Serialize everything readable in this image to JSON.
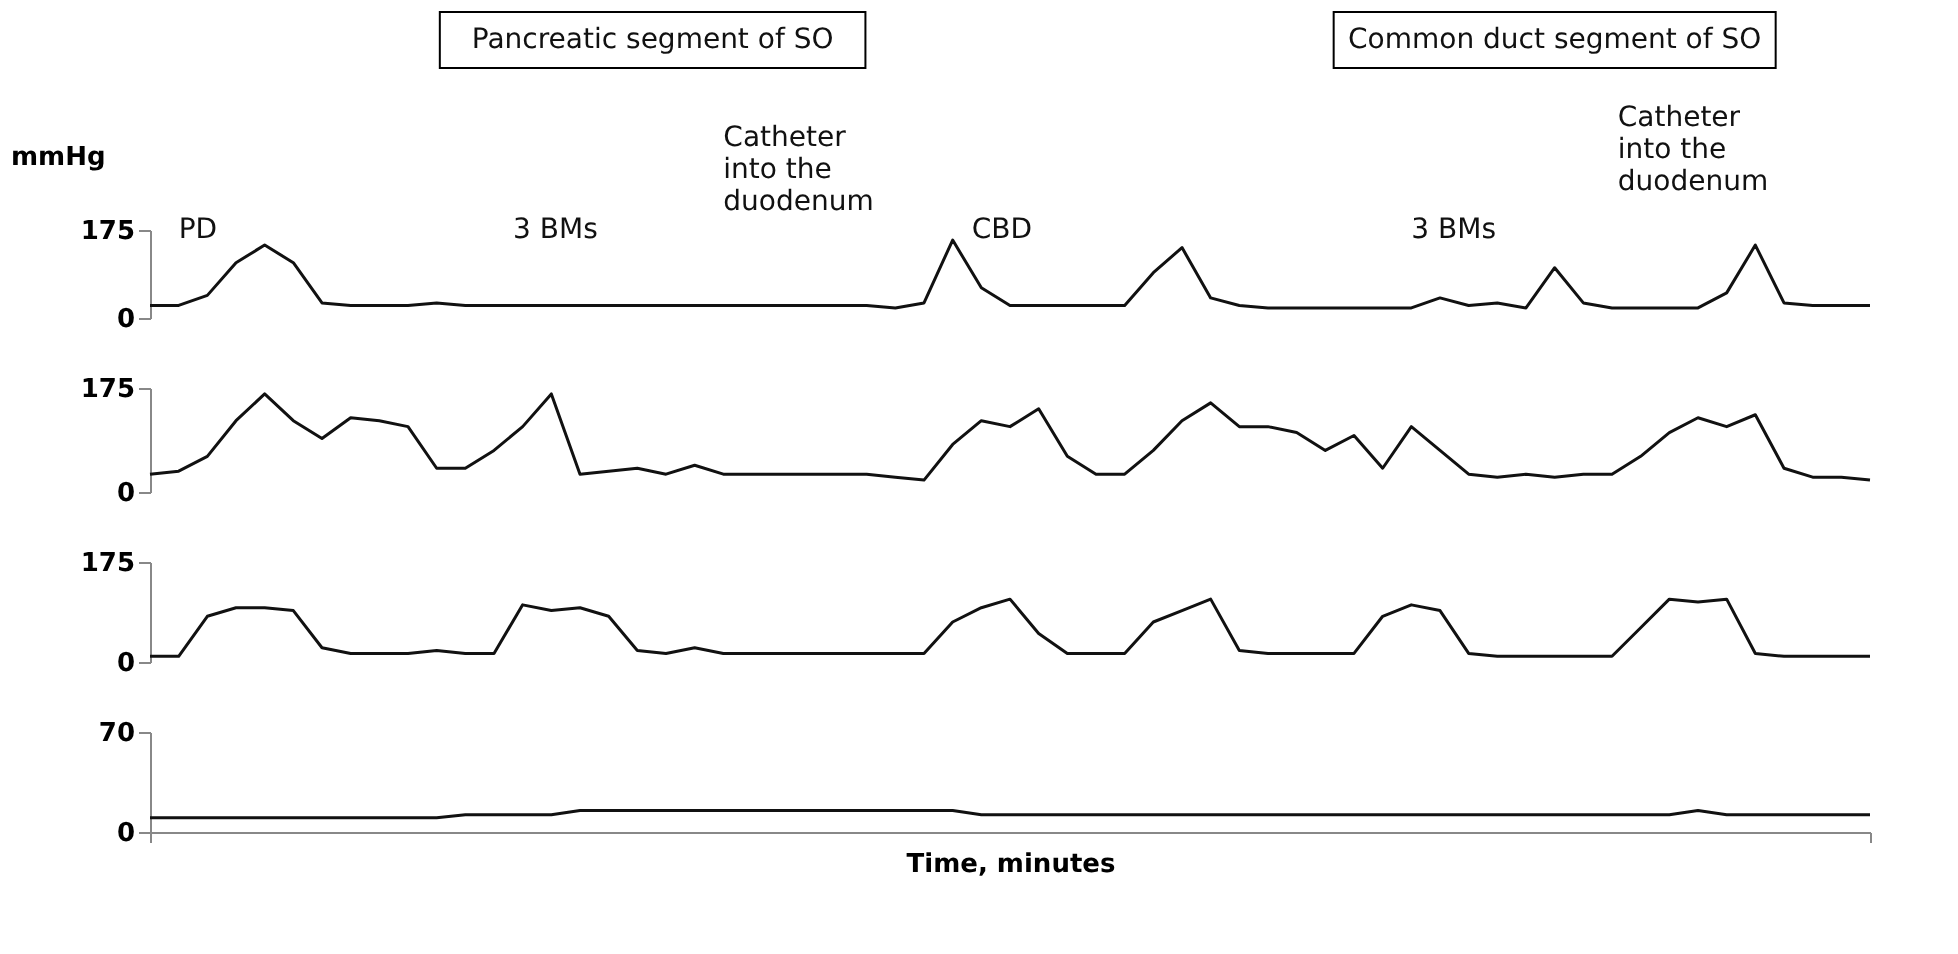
{
  "chart_data": [
    {
      "type": "line",
      "ylabel": "mmHg",
      "annotations": [
        "Pancreatic segment of SO",
        "Common duct segment of SO",
        "PD",
        "3 BMs",
        "Catheter into the duodenum",
        "CBD",
        "3 BMs",
        "Catheter into the duodenum"
      ],
      "categories": [
        null,
        null,
        null,
        null,
        null,
        null,
        null,
        null,
        null,
        null,
        null,
        null,
        null,
        null,
        null,
        null,
        null,
        null,
        null,
        null,
        null,
        null,
        null,
        null,
        null,
        null,
        null,
        null,
        null,
        null,
        null,
        null,
        null,
        null,
        null,
        null,
        null,
        null,
        null,
        null,
        null,
        null,
        null,
        null,
        null,
        null,
        null,
        null,
        null,
        null,
        null,
        null,
        null,
        null,
        null,
        null,
        null,
        null,
        null,
        null,
        null
      ],
      "series": [
        {
          "color": "#111111",
          "values": [
            25,
            25,
            45,
            110,
            145,
            110,
            30,
            25,
            25,
            25,
            30,
            25,
            25,
            25,
            25,
            25,
            25,
            25,
            25,
            25,
            25,
            25,
            25,
            25,
            25,
            25,
            20,
            30,
            155,
            60,
            25,
            25,
            25,
            25,
            25,
            90,
            140,
            40,
            25,
            20,
            20,
            20,
            20,
            20,
            20,
            40,
            25,
            30,
            20,
            100,
            30,
            20,
            20,
            20,
            20,
            50,
            145,
            30,
            25,
            25,
            25
          ]
        }
      ],
      "ylim": [
        0,
        175
      ],
      "yticks": [
        0,
        175
      ],
      "tick_labels": "y",
      "grid": false,
      "legend": false
    },
    {
      "type": "line",
      "categories": [
        null,
        null,
        null,
        null,
        null,
        null,
        null,
        null,
        null,
        null,
        null,
        null,
        null,
        null,
        null,
        null,
        null,
        null,
        null,
        null,
        null,
        null,
        null,
        null,
        null,
        null,
        null,
        null,
        null,
        null,
        null,
        null,
        null,
        null,
        null,
        null,
        null,
        null,
        null,
        null,
        null,
        null,
        null,
        null,
        null,
        null,
        null,
        null,
        null,
        null,
        null,
        null,
        null,
        null,
        null,
        null,
        null,
        null,
        null,
        null,
        null
      ],
      "series": [
        {
          "color": "#111111",
          "values": [
            30,
            35,
            60,
            120,
            165,
            120,
            90,
            125,
            120,
            110,
            40,
            40,
            70,
            110,
            165,
            30,
            35,
            40,
            30,
            45,
            30,
            30,
            30,
            30,
            30,
            30,
            25,
            20,
            80,
            120,
            110,
            140,
            60,
            30,
            30,
            70,
            120,
            150,
            110,
            110,
            100,
            70,
            95,
            40,
            110,
            70,
            30,
            25,
            30,
            25,
            30,
            30,
            60,
            100,
            125,
            110,
            130,
            40,
            25,
            25,
            20
          ]
        }
      ],
      "ylim": [
        0,
        175
      ],
      "yticks": [
        0,
        175
      ],
      "tick_labels": "y",
      "grid": false,
      "legend": false
    },
    {
      "type": "line",
      "categories": [
        null,
        null,
        null,
        null,
        null,
        null,
        null,
        null,
        null,
        null,
        null,
        null,
        null,
        null,
        null,
        null,
        null,
        null,
        null,
        null,
        null,
        null,
        null,
        null,
        null,
        null,
        null,
        null,
        null,
        null,
        null,
        null,
        null,
        null,
        null,
        null,
        null,
        null,
        null,
        null,
        null,
        null,
        null,
        null,
        null,
        null,
        null,
        null,
        null,
        null,
        null,
        null,
        null,
        null,
        null,
        null,
        null,
        null,
        null,
        null,
        null
      ],
      "series": [
        {
          "color": "#111111",
          "values": [
            10,
            10,
            80,
            95,
            95,
            90,
            25,
            15,
            15,
            15,
            20,
            15,
            15,
            100,
            90,
            95,
            80,
            20,
            15,
            25,
            15,
            15,
            15,
            15,
            15,
            15,
            15,
            15,
            70,
            95,
            110,
            50,
            15,
            15,
            15,
            70,
            90,
            110,
            20,
            15,
            15,
            15,
            15,
            80,
            100,
            90,
            15,
            10,
            10,
            10,
            10,
            10,
            60,
            110,
            105,
            110,
            15,
            10,
            10,
            10,
            10
          ]
        }
      ],
      "ylim": [
        0,
        175
      ],
      "yticks": [
        0,
        175
      ],
      "tick_labels": "y",
      "grid": false,
      "legend": false
    },
    {
      "type": "line",
      "xlabel": "Time, minutes",
      "categories": [
        null,
        null,
        null,
        null,
        null,
        null,
        null,
        null,
        null,
        null,
        null,
        null,
        null,
        null,
        null,
        null,
        null,
        null,
        null,
        null,
        null,
        null,
        null,
        null,
        null,
        null,
        null,
        null,
        null,
        null,
        null,
        null,
        null,
        null,
        null,
        null,
        null,
        null,
        null,
        null,
        null,
        null,
        null,
        null,
        null,
        null,
        null,
        null,
        null,
        null,
        null,
        null,
        null,
        null,
        null,
        null,
        null,
        null,
        null,
        null,
        null
      ],
      "series": [
        {
          "color": "#111111",
          "values": [
            10,
            10,
            10,
            10,
            10,
            10,
            10,
            10,
            10,
            10,
            10,
            12,
            12,
            12,
            12,
            15,
            15,
            15,
            15,
            15,
            15,
            15,
            15,
            15,
            15,
            15,
            15,
            15,
            15,
            12,
            12,
            12,
            12,
            12,
            12,
            12,
            12,
            12,
            12,
            12,
            12,
            12,
            12,
            12,
            12,
            12,
            12,
            12,
            12,
            12,
            12,
            12,
            12,
            12,
            15,
            12,
            12,
            12,
            12,
            12,
            12
          ]
        }
      ],
      "ylim": [
        0,
        70
      ],
      "yticks": [
        0,
        70
      ],
      "tick_labels": "y",
      "grid": false,
      "legend": false
    }
  ]
}
